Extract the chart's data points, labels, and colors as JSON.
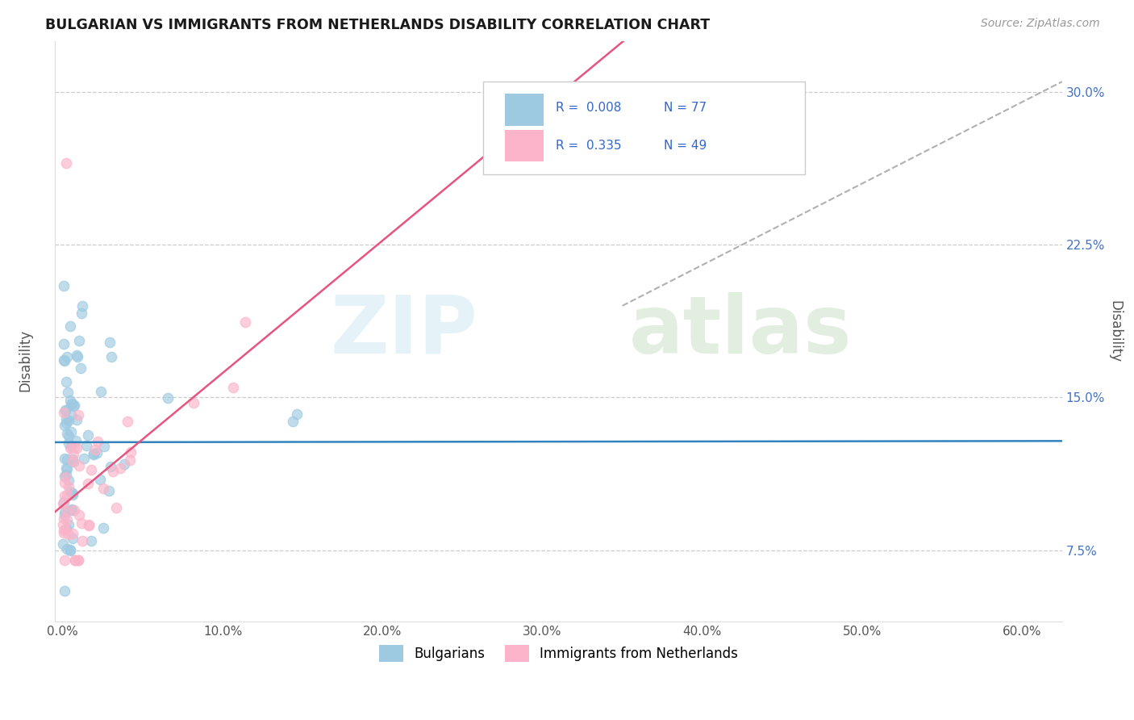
{
  "title": "BULGARIAN VS IMMIGRANTS FROM NETHERLANDS DISABILITY CORRELATION CHART",
  "source": "Source: ZipAtlas.com",
  "xlabel_ticks": [
    "0.0%",
    "10.0%",
    "20.0%",
    "30.0%",
    "40.0%",
    "50.0%",
    "60.0%"
  ],
  "xlabel_vals": [
    0.0,
    0.1,
    0.2,
    0.3,
    0.4,
    0.5,
    0.6
  ],
  "ylabel_ticks": [
    "7.5%",
    "15.0%",
    "22.5%",
    "30.0%"
  ],
  "ylabel_vals": [
    0.075,
    0.15,
    0.225,
    0.3
  ],
  "xlim": [
    -0.005,
    0.625
  ],
  "ylim": [
    0.04,
    0.325
  ],
  "blue_color": "#9ecae1",
  "pink_color": "#fbb4c9",
  "blue_line_color": "#3182bd",
  "pink_line_color": "#e75480",
  "blue_r": 0.008,
  "blue_n": 77,
  "pink_r": 0.335,
  "pink_n": 49,
  "scatter_alpha": 0.65,
  "scatter_size": 80,
  "blue_intercept": 0.128,
  "blue_slope": 0.001,
  "pink_intercept": 0.097,
  "pink_slope": 0.65,
  "dashed_line_start_x": 0.35,
  "dashed_line_start_y": 0.195,
  "dashed_line_end_x": 0.625,
  "dashed_line_end_y": 0.305
}
